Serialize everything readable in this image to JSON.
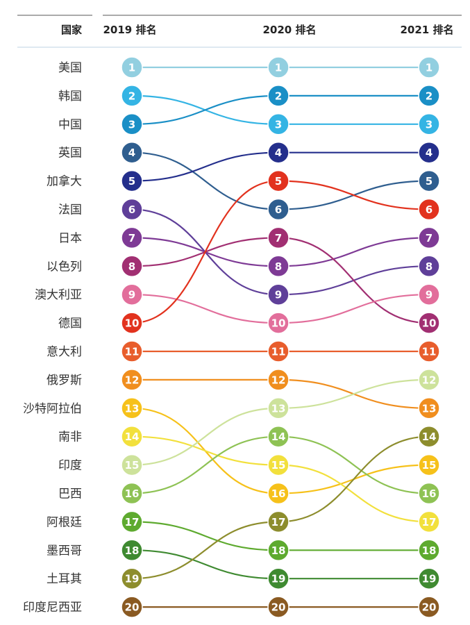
{
  "chart_data": {
    "type": "bump",
    "columns": [
      "2019 排名",
      "2020 排名",
      "2021 排名"
    ],
    "row_header": "国家",
    "rank_colors": [
      "#92cfe0",
      "#34b4e4",
      "#1a8fc6",
      "#2f5e8f",
      "#242f8c",
      "#5f3f99",
      "#7e3a95",
      "#a12f72",
      "#e26e9b",
      "#e2321e",
      "#e85d2c",
      "#f08e1e",
      "#f6c11a",
      "#f2e03c",
      "#cde29b",
      "#8ec254",
      "#5eaa2f",
      "#3f8a31",
      "#8d8d2d",
      "#8a5a22"
    ],
    "series": [
      {
        "name": "美国",
        "ranks": [
          1,
          1,
          1
        ]
      },
      {
        "name": "韩国",
        "ranks": [
          2,
          3,
          3
        ]
      },
      {
        "name": "中国",
        "ranks": [
          3,
          2,
          2
        ]
      },
      {
        "name": "英国",
        "ranks": [
          4,
          6,
          5
        ]
      },
      {
        "name": "加拿大",
        "ranks": [
          5,
          4,
          4
        ]
      },
      {
        "name": "法国",
        "ranks": [
          6,
          9,
          8
        ]
      },
      {
        "name": "日本",
        "ranks": [
          7,
          8,
          7
        ]
      },
      {
        "name": "以色列",
        "ranks": [
          8,
          7,
          10
        ]
      },
      {
        "name": "澳大利亚",
        "ranks": [
          9,
          10,
          9
        ]
      },
      {
        "name": "德国",
        "ranks": [
          10,
          5,
          6
        ]
      },
      {
        "name": "意大利",
        "ranks": [
          11,
          11,
          11
        ]
      },
      {
        "name": "俄罗斯",
        "ranks": [
          12,
          12,
          13
        ]
      },
      {
        "name": "沙特阿拉伯",
        "ranks": [
          13,
          16,
          15
        ]
      },
      {
        "name": "南非",
        "ranks": [
          14,
          15,
          17
        ]
      },
      {
        "name": "印度",
        "ranks": [
          15,
          13,
          12
        ]
      },
      {
        "name": "巴西",
        "ranks": [
          16,
          14,
          16
        ]
      },
      {
        "name": "阿根廷",
        "ranks": [
          17,
          18,
          18
        ]
      },
      {
        "name": "墨西哥",
        "ranks": [
          18,
          19,
          19
        ]
      },
      {
        "name": "土耳其",
        "ranks": [
          19,
          17,
          14
        ]
      },
      {
        "name": "印度尼西亚",
        "ranks": [
          20,
          20,
          20
        ]
      }
    ]
  }
}
